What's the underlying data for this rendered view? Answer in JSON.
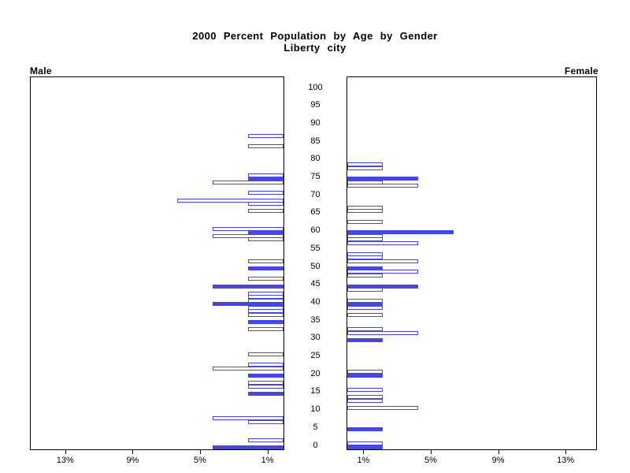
{
  "title": {
    "line1": "2000 Percent Population by Age by Gender",
    "line2": "Liberty city"
  },
  "panel_labels": {
    "left": "Male",
    "right": "Female"
  },
  "age_axis_labels": [
    "100",
    "95",
    "90",
    "85",
    "80",
    "75",
    "70",
    "65",
    "60",
    "55",
    "50",
    "45",
    "40",
    "35",
    "30",
    "25",
    "20",
    "15",
    "10",
    "5",
    "0"
  ],
  "x_ticks": {
    "male_labels": [
      "13%",
      "9%",
      "5%",
      "1%"
    ],
    "male_values": [
      13,
      9,
      5,
      1
    ],
    "female_labels": [
      "1%",
      "5%",
      "9%",
      "13%"
    ],
    "female_values": [
      1,
      5,
      9,
      13
    ]
  },
  "colors": {
    "bar_blue": "#4545EE",
    "frame": "#000000",
    "text": "#000000",
    "background": "#FFFFFF"
  },
  "chart_data": {
    "type": "bar",
    "variant": "population_pyramid",
    "title": "2000 Percent Population by Age by Gender",
    "subtitle": "Liberty city",
    "x_axis": {
      "unit": "percent",
      "side_range": [
        0,
        15
      ],
      "ticks": [
        1,
        5,
        9,
        13
      ]
    },
    "y_axis": {
      "label": "age",
      "range": [
        0,
        100
      ],
      "tick_step": 5
    },
    "bar_style_note": "filled = solid blue bar, outline = white bar with blue border",
    "series": [
      {
        "name": "Male",
        "side": "left",
        "bars": [
          {
            "age": 87,
            "pct": 2.1,
            "filled": false
          },
          {
            "age": 84,
            "pct": 2.1,
            "filled": false
          },
          {
            "age": 76,
            "pct": 2.1,
            "filled": false
          },
          {
            "age": 75,
            "pct": 2.1,
            "filled": true
          },
          {
            "age": 74,
            "pct": 4.2,
            "filled": false
          },
          {
            "age": 71,
            "pct": 2.1,
            "filled": false
          },
          {
            "age": 69,
            "pct": 6.3,
            "filled": false
          },
          {
            "age": 68,
            "pct": 2.1,
            "filled": false
          },
          {
            "age": 66,
            "pct": 2.1,
            "filled": false
          },
          {
            "age": 61,
            "pct": 4.2,
            "filled": false
          },
          {
            "age": 60,
            "pct": 2.1,
            "filled": true
          },
          {
            "age": 59,
            "pct": 4.2,
            "filled": false
          },
          {
            "age": 58,
            "pct": 2.1,
            "filled": false
          },
          {
            "age": 52,
            "pct": 2.1,
            "filled": false
          },
          {
            "age": 50,
            "pct": 2.1,
            "filled": true
          },
          {
            "age": 47,
            "pct": 2.1,
            "filled": false
          },
          {
            "age": 45,
            "pct": 4.2,
            "filled": true
          },
          {
            "age": 43,
            "pct": 2.1,
            "filled": false
          },
          {
            "age": 42,
            "pct": 2.1,
            "filled": false
          },
          {
            "age": 41,
            "pct": 2.1,
            "filled": false
          },
          {
            "age": 40,
            "pct": 4.2,
            "filled": true
          },
          {
            "age": 39,
            "pct": 2.1,
            "filled": false
          },
          {
            "age": 38,
            "pct": 2.1,
            "filled": false
          },
          {
            "age": 37,
            "pct": 2.1,
            "filled": false
          },
          {
            "age": 35,
            "pct": 2.1,
            "filled": true
          },
          {
            "age": 33,
            "pct": 2.1,
            "filled": false
          },
          {
            "age": 26,
            "pct": 2.1,
            "filled": false
          },
          {
            "age": 23,
            "pct": 2.1,
            "filled": false
          },
          {
            "age": 22,
            "pct": 4.2,
            "filled": false
          },
          {
            "age": 20,
            "pct": 2.1,
            "filled": true
          },
          {
            "age": 18,
            "pct": 2.1,
            "filled": false
          },
          {
            "age": 17,
            "pct": 2.1,
            "filled": false
          },
          {
            "age": 15,
            "pct": 2.1,
            "filled": true
          },
          {
            "age": 8,
            "pct": 4.2,
            "filled": false
          },
          {
            "age": 7,
            "pct": 2.1,
            "filled": false
          },
          {
            "age": 2,
            "pct": 2.1,
            "filled": false
          },
          {
            "age": 0,
            "pct": 4.2,
            "filled": true
          }
        ]
      },
      {
        "name": "Female",
        "side": "right",
        "bars": [
          {
            "age": 79,
            "pct": 2.1,
            "filled": false
          },
          {
            "age": 78,
            "pct": 2.1,
            "filled": false
          },
          {
            "age": 75,
            "pct": 4.2,
            "filled": true
          },
          {
            "age": 74,
            "pct": 2.1,
            "filled": false
          },
          {
            "age": 73,
            "pct": 4.2,
            "filled": false
          },
          {
            "age": 67,
            "pct": 2.1,
            "filled": false
          },
          {
            "age": 66,
            "pct": 2.1,
            "filled": false
          },
          {
            "age": 63,
            "pct": 2.1,
            "filled": false
          },
          {
            "age": 60,
            "pct": 6.3,
            "filled": true
          },
          {
            "age": 59,
            "pct": 2.1,
            "filled": false
          },
          {
            "age": 58,
            "pct": 2.1,
            "filled": false
          },
          {
            "age": 57,
            "pct": 4.2,
            "filled": false
          },
          {
            "age": 54,
            "pct": 2.1,
            "filled": false
          },
          {
            "age": 53,
            "pct": 2.1,
            "filled": false
          },
          {
            "age": 52,
            "pct": 4.2,
            "filled": false
          },
          {
            "age": 50,
            "pct": 2.1,
            "filled": true
          },
          {
            "age": 49,
            "pct": 4.2,
            "filled": false
          },
          {
            "age": 48,
            "pct": 2.1,
            "filled": false
          },
          {
            "age": 45,
            "pct": 4.2,
            "filled": true
          },
          {
            "age": 44,
            "pct": 2.1,
            "filled": false
          },
          {
            "age": 41,
            "pct": 2.1,
            "filled": false
          },
          {
            "age": 40,
            "pct": 2.1,
            "filled": true
          },
          {
            "age": 39,
            "pct": 2.1,
            "filled": false
          },
          {
            "age": 37,
            "pct": 2.1,
            "filled": false
          },
          {
            "age": 33,
            "pct": 2.1,
            "filled": false
          },
          {
            "age": 32,
            "pct": 4.2,
            "filled": false
          },
          {
            "age": 30,
            "pct": 2.1,
            "filled": true
          },
          {
            "age": 21,
            "pct": 2.1,
            "filled": false
          },
          {
            "age": 20,
            "pct": 2.1,
            "filled": true
          },
          {
            "age": 16,
            "pct": 2.1,
            "filled": false
          },
          {
            "age": 14,
            "pct": 2.1,
            "filled": false
          },
          {
            "age": 13,
            "pct": 2.1,
            "filled": false
          },
          {
            "age": 11,
            "pct": 4.2,
            "filled": false
          },
          {
            "age": 5,
            "pct": 2.1,
            "filled": true
          },
          {
            "age": 1,
            "pct": 2.1,
            "filled": false
          },
          {
            "age": 0,
            "pct": 2.1,
            "filled": true
          }
        ]
      }
    ]
  }
}
